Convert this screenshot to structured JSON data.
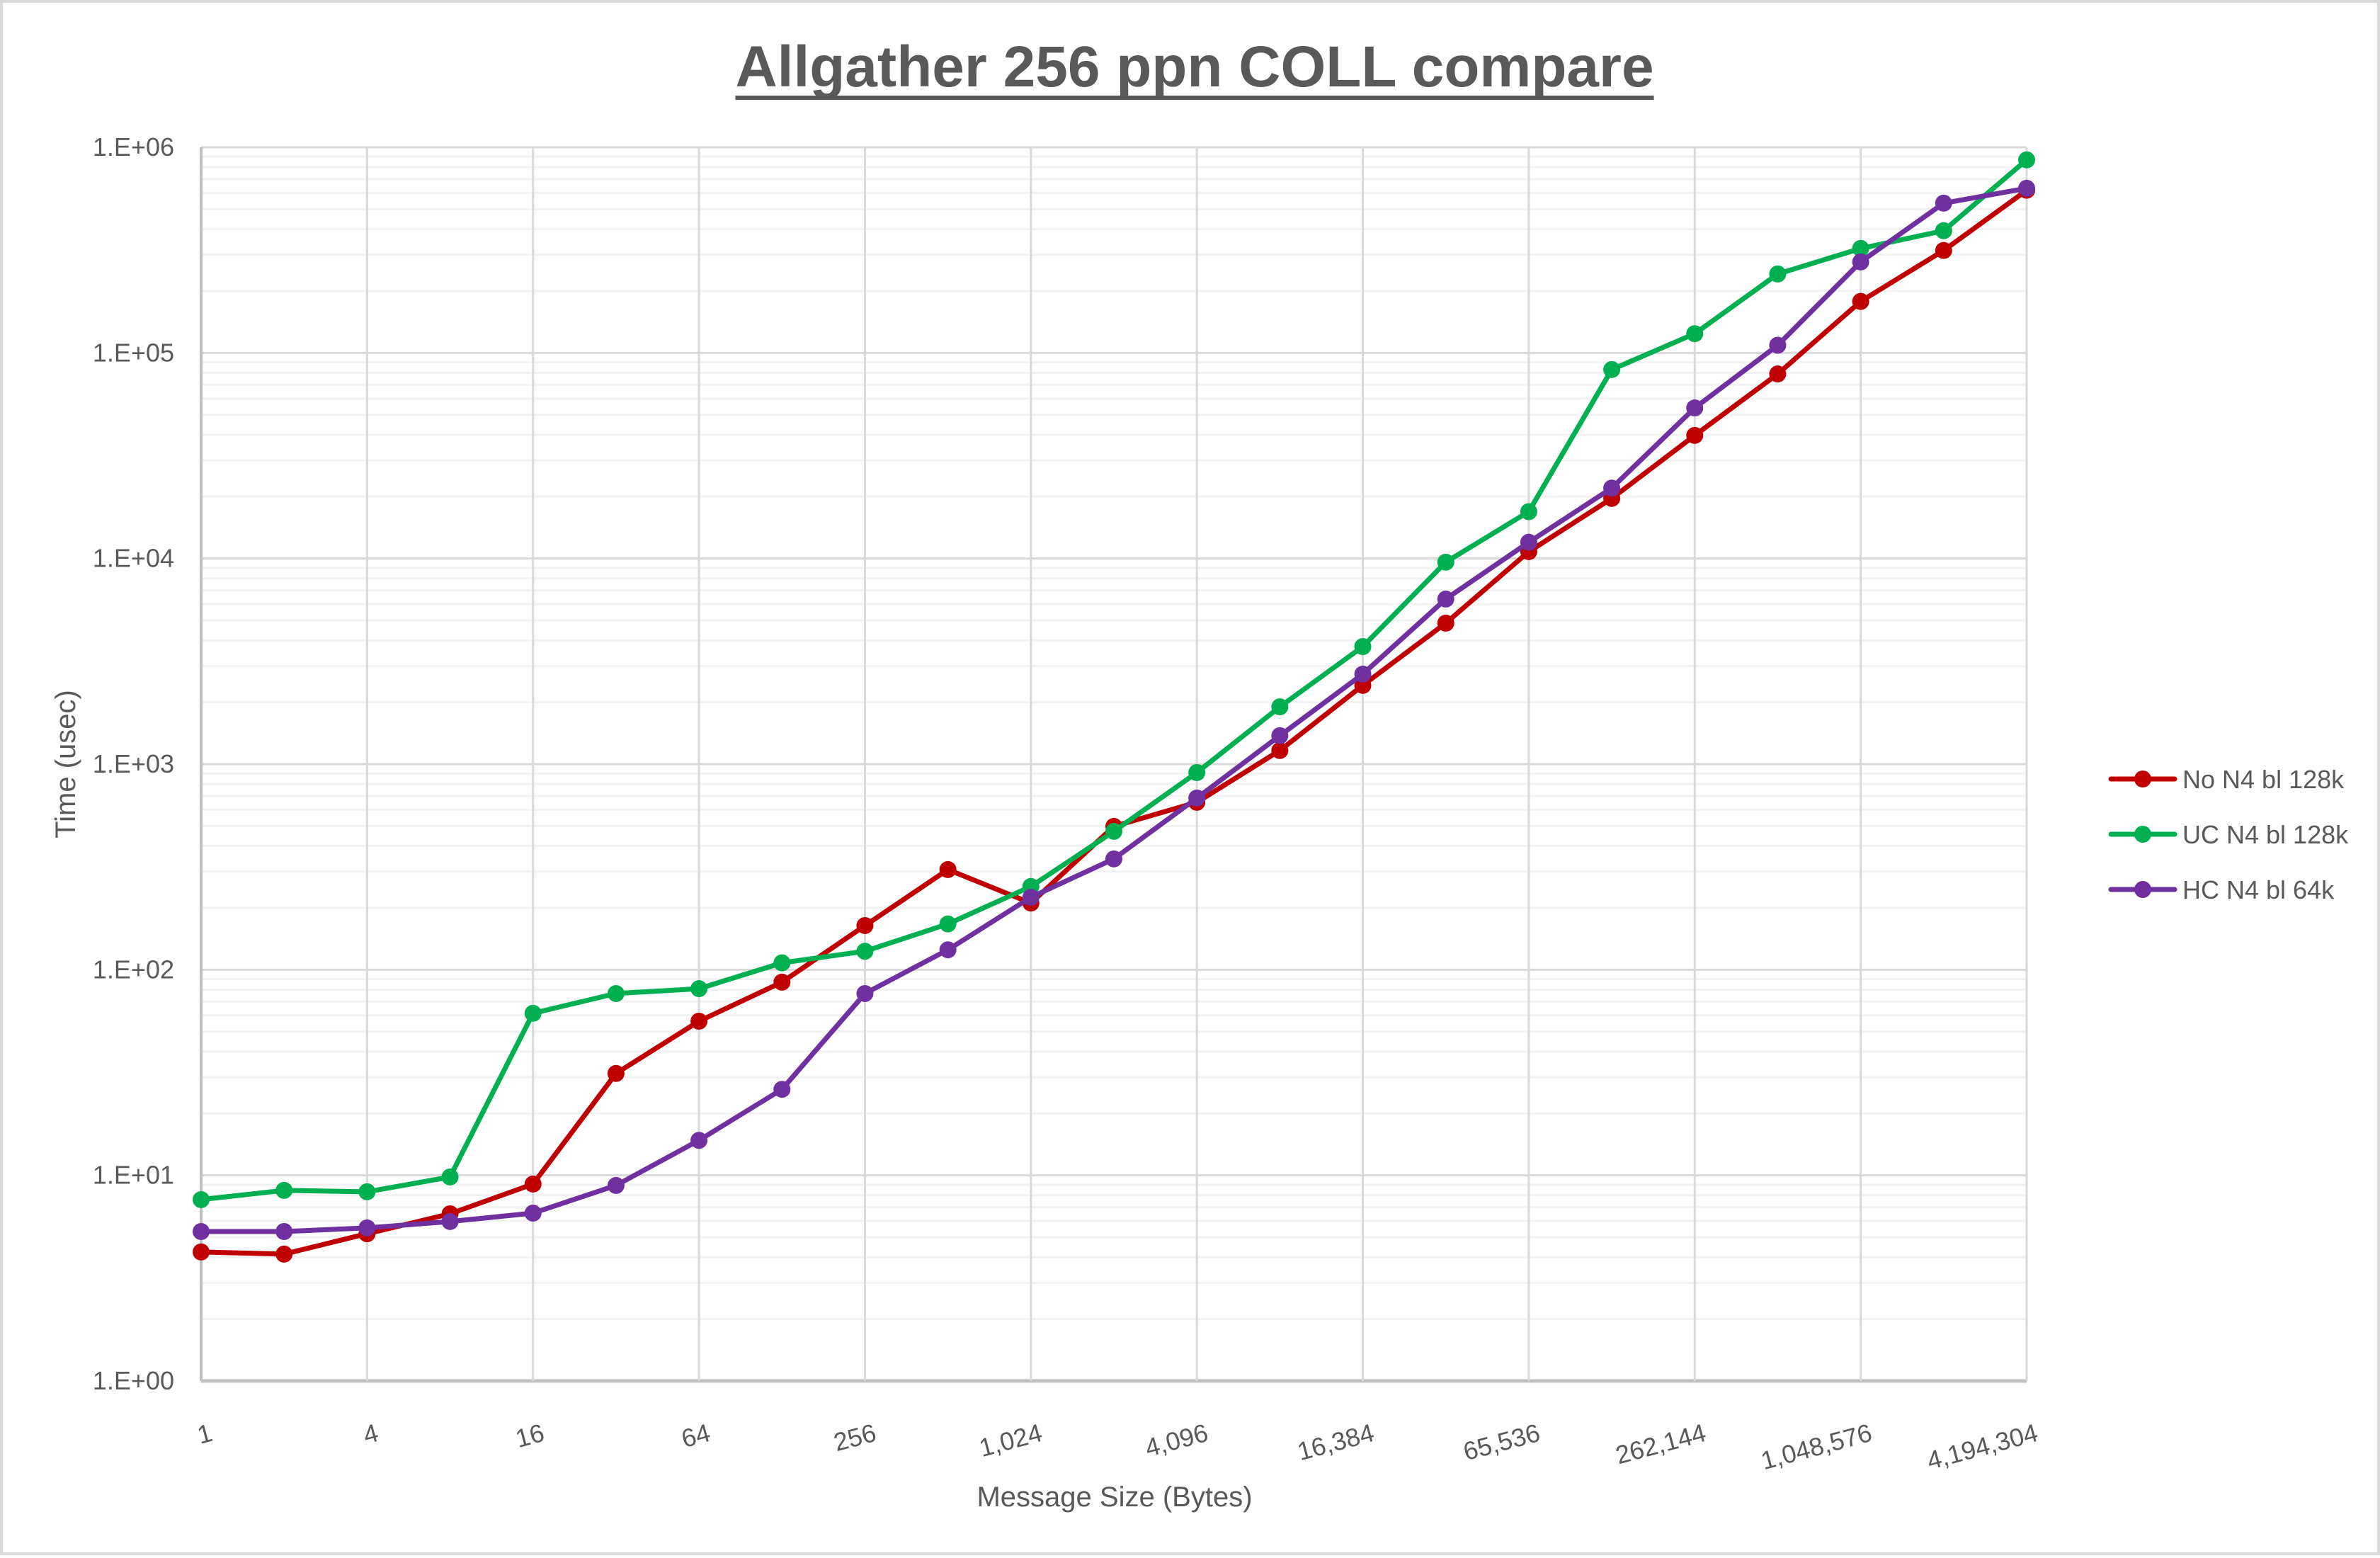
{
  "chart_data": {
    "type": "line",
    "title": "Allgather 256 ppn COLL compare",
    "xlabel": "Message Size (Bytes)",
    "ylabel": "Time (usec)",
    "x_scale": "log2",
    "y_scale": "log10",
    "ylim": [
      1,
      1000000
    ],
    "grid": {
      "major": true,
      "minor_y": true
    },
    "legend_position": "right",
    "x_tick_labels": [
      "1",
      "4",
      "16",
      "64",
      "256",
      "1,024",
      "4,096",
      "16,384",
      "65,536",
      "262,144",
      "1,048,576",
      "4,194,304"
    ],
    "y_tick_labels": [
      "1.E+00",
      "1.E+01",
      "1.E+02",
      "1.E+03",
      "1.E+04",
      "1.E+05",
      "1.E+06"
    ],
    "x": [
      1,
      2,
      4,
      8,
      16,
      32,
      64,
      128,
      256,
      512,
      1024,
      2048,
      4096,
      8192,
      16384,
      32768,
      65536,
      131072,
      262144,
      524288,
      1048576,
      2097152,
      4194304
    ],
    "series": [
      {
        "name": "No N4 bl 128k",
        "color": "#C00000",
        "values": [
          4.24,
          4.14,
          5.2,
          6.5,
          9.07,
          31.3,
          56.2,
          87,
          164,
          307,
          211,
          498,
          652,
          1165,
          2415,
          4850,
          10800,
          19600,
          39700,
          79000,
          178000,
          315000,
          618000
        ]
      },
      {
        "name": "UC N4 bl 128k",
        "color": "#00B050",
        "values": [
          7.62,
          8.45,
          8.32,
          9.82,
          61.4,
          76.6,
          80.9,
          108,
          123,
          167,
          254,
          471,
          910,
          1900,
          3730,
          9600,
          16900,
          83000,
          124000,
          242000,
          322000,
          393000,
          869000
        ]
      },
      {
        "name": "HC N4 bl 64k",
        "color": "#7030A0",
        "values": [
          5.33,
          5.33,
          5.55,
          5.96,
          6.55,
          8.93,
          14.8,
          26.2,
          76.6,
          125,
          225,
          346,
          684,
          1375,
          2740,
          6350,
          12000,
          22000,
          54000,
          109000,
          277000,
          535000,
          632000
        ]
      }
    ]
  },
  "colors": {
    "text": "#595959",
    "major_grid": "#D9D9D9",
    "minor_grid": "#F2F2F2",
    "border": "#D9D9D9"
  }
}
